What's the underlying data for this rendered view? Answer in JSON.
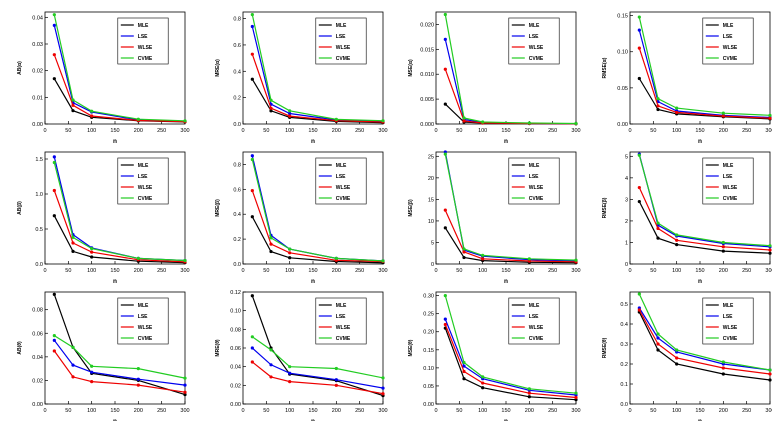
{
  "figure": {
    "series_names": [
      "MLE",
      "LSE",
      "WLSE",
      "CVME"
    ],
    "series_colors": [
      "#000000",
      "#0000ee",
      "#ee0000",
      "#22cc22"
    ]
  },
  "chart_data": [
    {
      "type": "line",
      "title": "",
      "xlabel": "n",
      "ylabel": "AB(α)",
      "x": [
        20,
        60,
        100,
        200,
        300
      ],
      "xlim": [
        0,
        300
      ],
      "xticks": [
        "0",
        "50",
        "100",
        "150",
        "200",
        "250",
        "300"
      ],
      "ylim": [
        0,
        0.042
      ],
      "yticks": [
        "0.00",
        "0.01",
        "0.02",
        "0.03",
        "0.04"
      ],
      "legend": "top-right",
      "series": [
        {
          "name": "MLE",
          "values": [
            0.017,
            0.005,
            0.0025,
            0.0012,
            0.0008
          ]
        },
        {
          "name": "LSE",
          "values": [
            0.037,
            0.008,
            0.0045,
            0.0015,
            0.001
          ]
        },
        {
          "name": "WLSE",
          "values": [
            0.026,
            0.007,
            0.003,
            0.0013,
            0.0009
          ]
        },
        {
          "name": "CVME",
          "values": [
            0.041,
            0.009,
            0.0048,
            0.0018,
            0.0012
          ]
        }
      ]
    },
    {
      "type": "line",
      "title": "",
      "xlabel": "n",
      "ylabel": "MRE(α)",
      "x": [
        20,
        60,
        100,
        200,
        300
      ],
      "xlim": [
        0,
        300
      ],
      "xticks": [
        "0",
        "50",
        "100",
        "150",
        "200",
        "250",
        "300"
      ],
      "ylim": [
        0,
        0.85
      ],
      "yticks": [
        "0.0",
        "0.2",
        "0.4",
        "0.6",
        "0.8"
      ],
      "legend": "top-right",
      "series": [
        {
          "name": "MLE",
          "values": [
            0.34,
            0.1,
            0.05,
            0.02,
            0.01
          ]
        },
        {
          "name": "LSE",
          "values": [
            0.74,
            0.15,
            0.08,
            0.03,
            0.02
          ]
        },
        {
          "name": "WLSE",
          "values": [
            0.53,
            0.12,
            0.06,
            0.025,
            0.015
          ]
        },
        {
          "name": "CVME",
          "values": [
            0.83,
            0.18,
            0.1,
            0.035,
            0.025
          ]
        }
      ]
    },
    {
      "type": "line",
      "title": "",
      "xlabel": "n",
      "ylabel": "MSE(α)",
      "x": [
        20,
        60,
        100,
        200,
        300
      ],
      "xlim": [
        0,
        300
      ],
      "xticks": [
        "0",
        "50",
        "100",
        "150",
        "200",
        "250",
        "300"
      ],
      "ylim": [
        0,
        0.0225
      ],
      "yticks": [
        "0.000",
        "0.005",
        "0.010",
        "0.015",
        "0.020"
      ],
      "legend": "top-right",
      "series": [
        {
          "name": "MLE",
          "values": [
            0.004,
            0.0004,
            0.0002,
            0.0001,
            5e-05
          ]
        },
        {
          "name": "LSE",
          "values": [
            0.017,
            0.0009,
            0.0003,
            0.0001,
            5e-05
          ]
        },
        {
          "name": "WLSE",
          "values": [
            0.011,
            0.0006,
            0.0002,
            0.0001,
            5e-05
          ]
        },
        {
          "name": "CVME",
          "values": [
            0.022,
            0.0012,
            0.0004,
            0.0002,
            0.0001
          ]
        }
      ]
    },
    {
      "type": "line",
      "title": "",
      "xlabel": "n",
      "ylabel": "RMSE(α)",
      "x": [
        20,
        60,
        100,
        200,
        300
      ],
      "xlim": [
        0,
        300
      ],
      "xticks": [
        "0",
        "50",
        "100",
        "150",
        "200",
        "250",
        "300"
      ],
      "ylim": [
        0,
        0.155
      ],
      "yticks": [
        "0.00",
        "0.05",
        "0.10",
        "0.15"
      ],
      "legend": "top-right",
      "series": [
        {
          "name": "MLE",
          "values": [
            0.063,
            0.02,
            0.014,
            0.01,
            0.007
          ]
        },
        {
          "name": "LSE",
          "values": [
            0.13,
            0.031,
            0.018,
            0.012,
            0.009
          ]
        },
        {
          "name": "WLSE",
          "values": [
            0.105,
            0.025,
            0.016,
            0.011,
            0.008
          ]
        },
        {
          "name": "CVME",
          "values": [
            0.148,
            0.035,
            0.022,
            0.015,
            0.012
          ]
        }
      ]
    },
    {
      "type": "line",
      "title": "",
      "xlabel": "n",
      "ylabel": "AB(β)",
      "x": [
        20,
        60,
        100,
        200,
        300
      ],
      "xlim": [
        0,
        300
      ],
      "xticks": [
        "0",
        "50",
        "100",
        "150",
        "200",
        "250",
        "300"
      ],
      "ylim": [
        0,
        1.6
      ],
      "yticks": [
        "0.0",
        "0.5",
        "1.0",
        "1.5"
      ],
      "legend": "top-right",
      "series": [
        {
          "name": "MLE",
          "values": [
            0.69,
            0.18,
            0.1,
            0.04,
            0.02
          ]
        },
        {
          "name": "LSE",
          "values": [
            1.53,
            0.42,
            0.23,
            0.08,
            0.05
          ]
        },
        {
          "name": "WLSE",
          "values": [
            1.05,
            0.3,
            0.17,
            0.06,
            0.03
          ]
        },
        {
          "name": "CVME",
          "values": [
            1.45,
            0.38,
            0.22,
            0.08,
            0.05
          ]
        }
      ]
    },
    {
      "type": "line",
      "title": "",
      "xlabel": "n",
      "ylabel": "MRE(β)",
      "x": [
        20,
        60,
        100,
        200,
        300
      ],
      "xlim": [
        0,
        300
      ],
      "xticks": [
        "0",
        "50",
        "100",
        "150",
        "200",
        "250",
        "300"
      ],
      "ylim": [
        0,
        0.9
      ],
      "yticks": [
        "0.0",
        "0.2",
        "0.4",
        "0.6",
        "0.8"
      ],
      "legend": "top-right",
      "series": [
        {
          "name": "MLE",
          "values": [
            0.38,
            0.1,
            0.05,
            0.02,
            0.01
          ]
        },
        {
          "name": "LSE",
          "values": [
            0.87,
            0.23,
            0.12,
            0.045,
            0.025
          ]
        },
        {
          "name": "WLSE",
          "values": [
            0.59,
            0.16,
            0.09,
            0.03,
            0.02
          ]
        },
        {
          "name": "CVME",
          "values": [
            0.84,
            0.21,
            0.12,
            0.045,
            0.025
          ]
        }
      ]
    },
    {
      "type": "line",
      "title": "",
      "xlabel": "n",
      "ylabel": "MSE(β)",
      "x": [
        20,
        60,
        100,
        200,
        300
      ],
      "xlim": [
        0,
        300
      ],
      "xticks": [
        "0",
        "50",
        "100",
        "150",
        "200",
        "250",
        "300"
      ],
      "ylim": [
        0,
        26
      ],
      "yticks": [
        "0",
        "5",
        "10",
        "15",
        "20",
        "25"
      ],
      "legend": "top-right",
      "series": [
        {
          "name": "MLE",
          "values": [
            8.4,
            1.5,
            0.8,
            0.4,
            0.3
          ]
        },
        {
          "name": "LSE",
          "values": [
            26,
            3.2,
            1.8,
            1.0,
            0.7
          ]
        },
        {
          "name": "WLSE",
          "values": [
            12.5,
            2.8,
            1.2,
            0.7,
            0.5
          ]
        },
        {
          "name": "CVME",
          "values": [
            25.5,
            3.5,
            2.0,
            1.2,
            0.9
          ]
        }
      ]
    },
    {
      "type": "line",
      "title": "",
      "xlabel": "n",
      "ylabel": "RMSE(β)",
      "x": [
        20,
        60,
        100,
        200,
        300
      ],
      "xlim": [
        0,
        300
      ],
      "xticks": [
        "0",
        "50",
        "100",
        "150",
        "200",
        "250",
        "300"
      ],
      "ylim": [
        0,
        5.2
      ],
      "yticks": [
        "0",
        "1",
        "2",
        "3",
        "4",
        "5"
      ],
      "legend": "top-right",
      "series": [
        {
          "name": "MLE",
          "values": [
            2.9,
            1.2,
            0.9,
            0.6,
            0.5
          ]
        },
        {
          "name": "LSE",
          "values": [
            5.1,
            1.8,
            1.3,
            0.95,
            0.8
          ]
        },
        {
          "name": "WLSE",
          "values": [
            3.55,
            1.65,
            1.1,
            0.8,
            0.65
          ]
        },
        {
          "name": "CVME",
          "values": [
            5.05,
            1.9,
            1.35,
            1.0,
            0.85
          ]
        }
      ]
    },
    {
      "type": "line",
      "title": "",
      "xlabel": "n",
      "ylabel": "AB(θ)",
      "x": [
        20,
        60,
        100,
        200,
        300
      ],
      "xlim": [
        0,
        300
      ],
      "xticks": [
        "0",
        "50",
        "100",
        "150",
        "200",
        "250",
        "300"
      ],
      "ylim": [
        0,
        0.095
      ],
      "yticks": [
        "0.00",
        "0.02",
        "0.04",
        "0.06",
        "0.08"
      ],
      "legend": "top-right",
      "series": [
        {
          "name": "MLE",
          "values": [
            0.093,
            0.048,
            0.026,
            0.02,
            0.008
          ]
        },
        {
          "name": "LSE",
          "values": [
            0.054,
            0.033,
            0.027,
            0.021,
            0.016
          ]
        },
        {
          "name": "WLSE",
          "values": [
            0.045,
            0.023,
            0.019,
            0.016,
            0.01
          ]
        },
        {
          "name": "CVME",
          "values": [
            0.058,
            0.048,
            0.032,
            0.03,
            0.022
          ]
        }
      ]
    },
    {
      "type": "line",
      "title": "",
      "xlabel": "n",
      "ylabel": "MRE(θ)",
      "x": [
        20,
        60,
        100,
        200,
        300
      ],
      "xlim": [
        0,
        300
      ],
      "xticks": [
        "0",
        "50",
        "100",
        "150",
        "200",
        "250",
        "300"
      ],
      "ylim": [
        0,
        0.12
      ],
      "yticks": [
        "0.00",
        "0.02",
        "0.04",
        "0.06",
        "0.08",
        "0.10",
        "0.12"
      ],
      "legend": "top-right",
      "series": [
        {
          "name": "MLE",
          "values": [
            0.116,
            0.06,
            0.032,
            0.025,
            0.009
          ]
        },
        {
          "name": "LSE",
          "values": [
            0.06,
            0.042,
            0.033,
            0.026,
            0.017
          ]
        },
        {
          "name": "WLSE",
          "values": [
            0.045,
            0.029,
            0.024,
            0.02,
            0.011
          ]
        },
        {
          "name": "CVME",
          "values": [
            0.072,
            0.058,
            0.04,
            0.038,
            0.028
          ]
        }
      ]
    },
    {
      "type": "line",
      "title": "",
      "xlabel": "n",
      "ylabel": "MSE(θ)",
      "x": [
        20,
        60,
        100,
        200,
        300
      ],
      "xlim": [
        0,
        300
      ],
      "xticks": [
        "0",
        "50",
        "100",
        "150",
        "200",
        "250",
        "300"
      ],
      "ylim": [
        0,
        0.31
      ],
      "yticks": [
        "0.00",
        "0.05",
        "0.10",
        "0.15",
        "0.20",
        "0.25",
        "0.30"
      ],
      "legend": "top-right",
      "series": [
        {
          "name": "MLE",
          "values": [
            0.21,
            0.07,
            0.045,
            0.02,
            0.012
          ]
        },
        {
          "name": "LSE",
          "values": [
            0.235,
            0.105,
            0.07,
            0.038,
            0.025
          ]
        },
        {
          "name": "WLSE",
          "values": [
            0.22,
            0.09,
            0.058,
            0.03,
            0.018
          ]
        },
        {
          "name": "CVME",
          "values": [
            0.3,
            0.115,
            0.075,
            0.042,
            0.03
          ]
        }
      ]
    },
    {
      "type": "line",
      "title": "",
      "xlabel": "n",
      "ylabel": "RMSE(θ)",
      "x": [
        20,
        60,
        100,
        200,
        300
      ],
      "xlim": [
        0,
        300
      ],
      "xticks": [
        "0",
        "50",
        "100",
        "150",
        "200",
        "250",
        "300"
      ],
      "ylim": [
        0,
        0.56
      ],
      "yticks": [
        "0.0",
        "0.1",
        "0.2",
        "0.3",
        "0.4",
        "0.5"
      ],
      "legend": "top-right",
      "series": [
        {
          "name": "MLE",
          "values": [
            0.46,
            0.27,
            0.2,
            0.15,
            0.12
          ]
        },
        {
          "name": "LSE",
          "values": [
            0.48,
            0.33,
            0.26,
            0.2,
            0.17
          ]
        },
        {
          "name": "WLSE",
          "values": [
            0.47,
            0.3,
            0.23,
            0.18,
            0.15
          ]
        },
        {
          "name": "CVME",
          "values": [
            0.55,
            0.35,
            0.27,
            0.21,
            0.17
          ]
        }
      ]
    }
  ]
}
